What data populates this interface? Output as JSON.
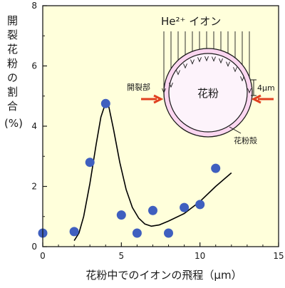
{
  "chart_data": {
    "type": "scatter",
    "ylabel_chars": [
      "開",
      "裂",
      "花",
      "粉",
      "の",
      "割",
      "合"
    ],
    "ylabel_unit": "(%)",
    "xlabel": "花粉中でのイオンの飛程（μm）",
    "xlim": [
      0,
      15
    ],
    "ylim": [
      0,
      8
    ],
    "xticks": [
      0,
      5,
      10,
      15
    ],
    "yticks": [
      0,
      2,
      4,
      6,
      8
    ],
    "points": [
      {
        "x": 0,
        "y": 0.45
      },
      {
        "x": 2,
        "y": 0.5
      },
      {
        "x": 3,
        "y": 2.8
      },
      {
        "x": 4,
        "y": 4.75
      },
      {
        "x": 5,
        "y": 1.05
      },
      {
        "x": 6,
        "y": 0.45
      },
      {
        "x": 7,
        "y": 1.2
      },
      {
        "x": 8,
        "y": 0.45
      },
      {
        "x": 9,
        "y": 1.3
      },
      {
        "x": 10,
        "y": 1.4
      },
      {
        "x": 11,
        "y": 2.6
      }
    ],
    "fit_curve": [
      [
        2,
        0.2
      ],
      [
        2.3,
        0.45
      ],
      [
        2.6,
        1.0
      ],
      [
        3.0,
        2.1
      ],
      [
        3.4,
        3.4
      ],
      [
        3.7,
        4.3
      ],
      [
        3.95,
        4.7
      ],
      [
        4.2,
        4.65
      ],
      [
        4.5,
        3.9
      ],
      [
        4.9,
        2.8
      ],
      [
        5.3,
        1.9
      ],
      [
        5.7,
        1.3
      ],
      [
        6.1,
        0.95
      ],
      [
        6.5,
        0.75
      ],
      [
        6.9,
        0.68
      ],
      [
        7.4,
        0.72
      ],
      [
        8.0,
        0.85
      ],
      [
        9.0,
        1.1
      ],
      [
        10.0,
        1.5
      ],
      [
        11.0,
        2.0
      ],
      [
        12.0,
        2.45
      ]
    ],
    "grid": false,
    "colors": {
      "background": "#ffffdb",
      "point": "#3f5fbf",
      "curve": "#000000",
      "pollen_fill": "#fbd6f0",
      "arrow": "#e04020"
    },
    "inset": {
      "ion_label": "He²⁺ イオン",
      "pollen_label": "花粉",
      "crack_label": "開裂部",
      "wall_label": "花粉殻",
      "thickness_label": "4μm"
    }
  }
}
